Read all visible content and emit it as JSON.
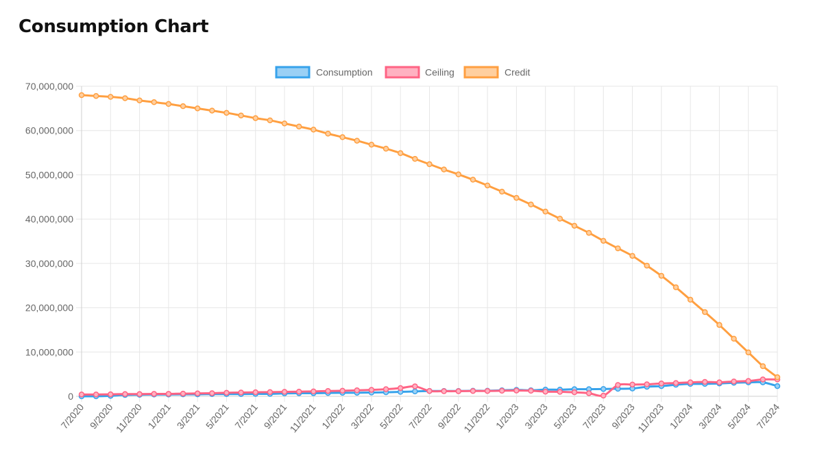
{
  "page": {
    "title": "Consumption Chart"
  },
  "chart_data": {
    "type": "line",
    "title": "Consumption Chart",
    "xlabel": "",
    "ylabel": "",
    "ylim": [
      0,
      70000000
    ],
    "y_ticks": [
      0,
      10000000,
      20000000,
      30000000,
      40000000,
      50000000,
      60000000,
      70000000
    ],
    "y_tick_labels": [
      "0",
      "10,000,000",
      "20,000,000",
      "30,000,000",
      "40,000,000",
      "50,000,000",
      "60,000,000",
      "70,000,000"
    ],
    "grid": true,
    "legend_position": "top-center",
    "categories": [
      "7/2020",
      "8/2020",
      "9/2020",
      "10/2020",
      "11/2020",
      "12/2020",
      "1/2021",
      "2/2021",
      "3/2021",
      "4/2021",
      "5/2021",
      "6/2021",
      "7/2021",
      "8/2021",
      "9/2021",
      "10/2021",
      "11/2021",
      "12/2021",
      "1/2022",
      "2/2022",
      "3/2022",
      "4/2022",
      "5/2022",
      "6/2022",
      "7/2022",
      "8/2022",
      "9/2022",
      "10/2022",
      "11/2022",
      "12/2022",
      "1/2023",
      "2/2023",
      "3/2023",
      "4/2023",
      "5/2023",
      "6/2023",
      "7/2023",
      "8/2023",
      "9/2023",
      "10/2023",
      "11/2023",
      "12/2023",
      "1/2024",
      "2/2024",
      "3/2024",
      "4/2024",
      "5/2024",
      "6/2024",
      "7/2024"
    ],
    "x_tick_labels": [
      "7/2020",
      "9/2020",
      "11/2020",
      "1/2021",
      "3/2021",
      "5/2021",
      "7/2021",
      "9/2021",
      "11/2021",
      "1/2022",
      "3/2022",
      "5/2022",
      "7/2022",
      "9/2022",
      "11/2022",
      "1/2023",
      "3/2023",
      "5/2023",
      "7/2023",
      "9/2023",
      "11/2023",
      "1/2024",
      "3/2024",
      "5/2024",
      "7/2024"
    ],
    "series": [
      {
        "name": "Consumption",
        "color": "#36a2eb",
        "fill": "#9ad0f5",
        "values": [
          0,
          0,
          100000,
          300000,
          350000,
          400000,
          400000,
          450000,
          450000,
          500000,
          500000,
          500000,
          550000,
          550000,
          650000,
          700000,
          700000,
          750000,
          800000,
          800000,
          850000,
          900000,
          1000000,
          1100000,
          1200000,
          1200000,
          1200000,
          1250000,
          1250000,
          1350000,
          1450000,
          1350000,
          1500000,
          1500000,
          1600000,
          1600000,
          1650000,
          1700000,
          1750000,
          2150000,
          2300000,
          2600000,
          2800000,
          2800000,
          2900000,
          3050000,
          3150000,
          3150000,
          2300000
        ]
      },
      {
        "name": "Ceiling",
        "color": "#ff6384",
        "fill": "#ffb1c1",
        "values": [
          400000,
          400000,
          450000,
          500000,
          500000,
          550000,
          550000,
          600000,
          650000,
          700000,
          800000,
          850000,
          900000,
          950000,
          1000000,
          1050000,
          1100000,
          1200000,
          1250000,
          1350000,
          1450000,
          1600000,
          1850000,
          2250000,
          1200000,
          1150000,
          1150000,
          1200000,
          1200000,
          1250000,
          1300000,
          1250000,
          1050000,
          1000000,
          900000,
          700000,
          150000,
          2550000,
          2650000,
          2700000,
          2900000,
          3000000,
          3150000,
          3250000,
          3150000,
          3350000,
          3450000,
          3800000,
          3800000
        ]
      },
      {
        "name": "Credit",
        "color": "#ff9f40",
        "fill": "#ffcf9f",
        "values": [
          68000000,
          67800000,
          67600000,
          67300000,
          66800000,
          66400000,
          66000000,
          65500000,
          65000000,
          64500000,
          64000000,
          63400000,
          62800000,
          62300000,
          61600000,
          60900000,
          60200000,
          59300000,
          58500000,
          57700000,
          56800000,
          55900000,
          54900000,
          53600000,
          52400000,
          51200000,
          50100000,
          48900000,
          47600000,
          46200000,
          44800000,
          43300000,
          41700000,
          40100000,
          38500000,
          36900000,
          35100000,
          33400000,
          31700000,
          29500000,
          27200000,
          24600000,
          21800000,
          19000000,
          16100000,
          13000000,
          9900000,
          6800000,
          4300000
        ]
      }
    ]
  }
}
